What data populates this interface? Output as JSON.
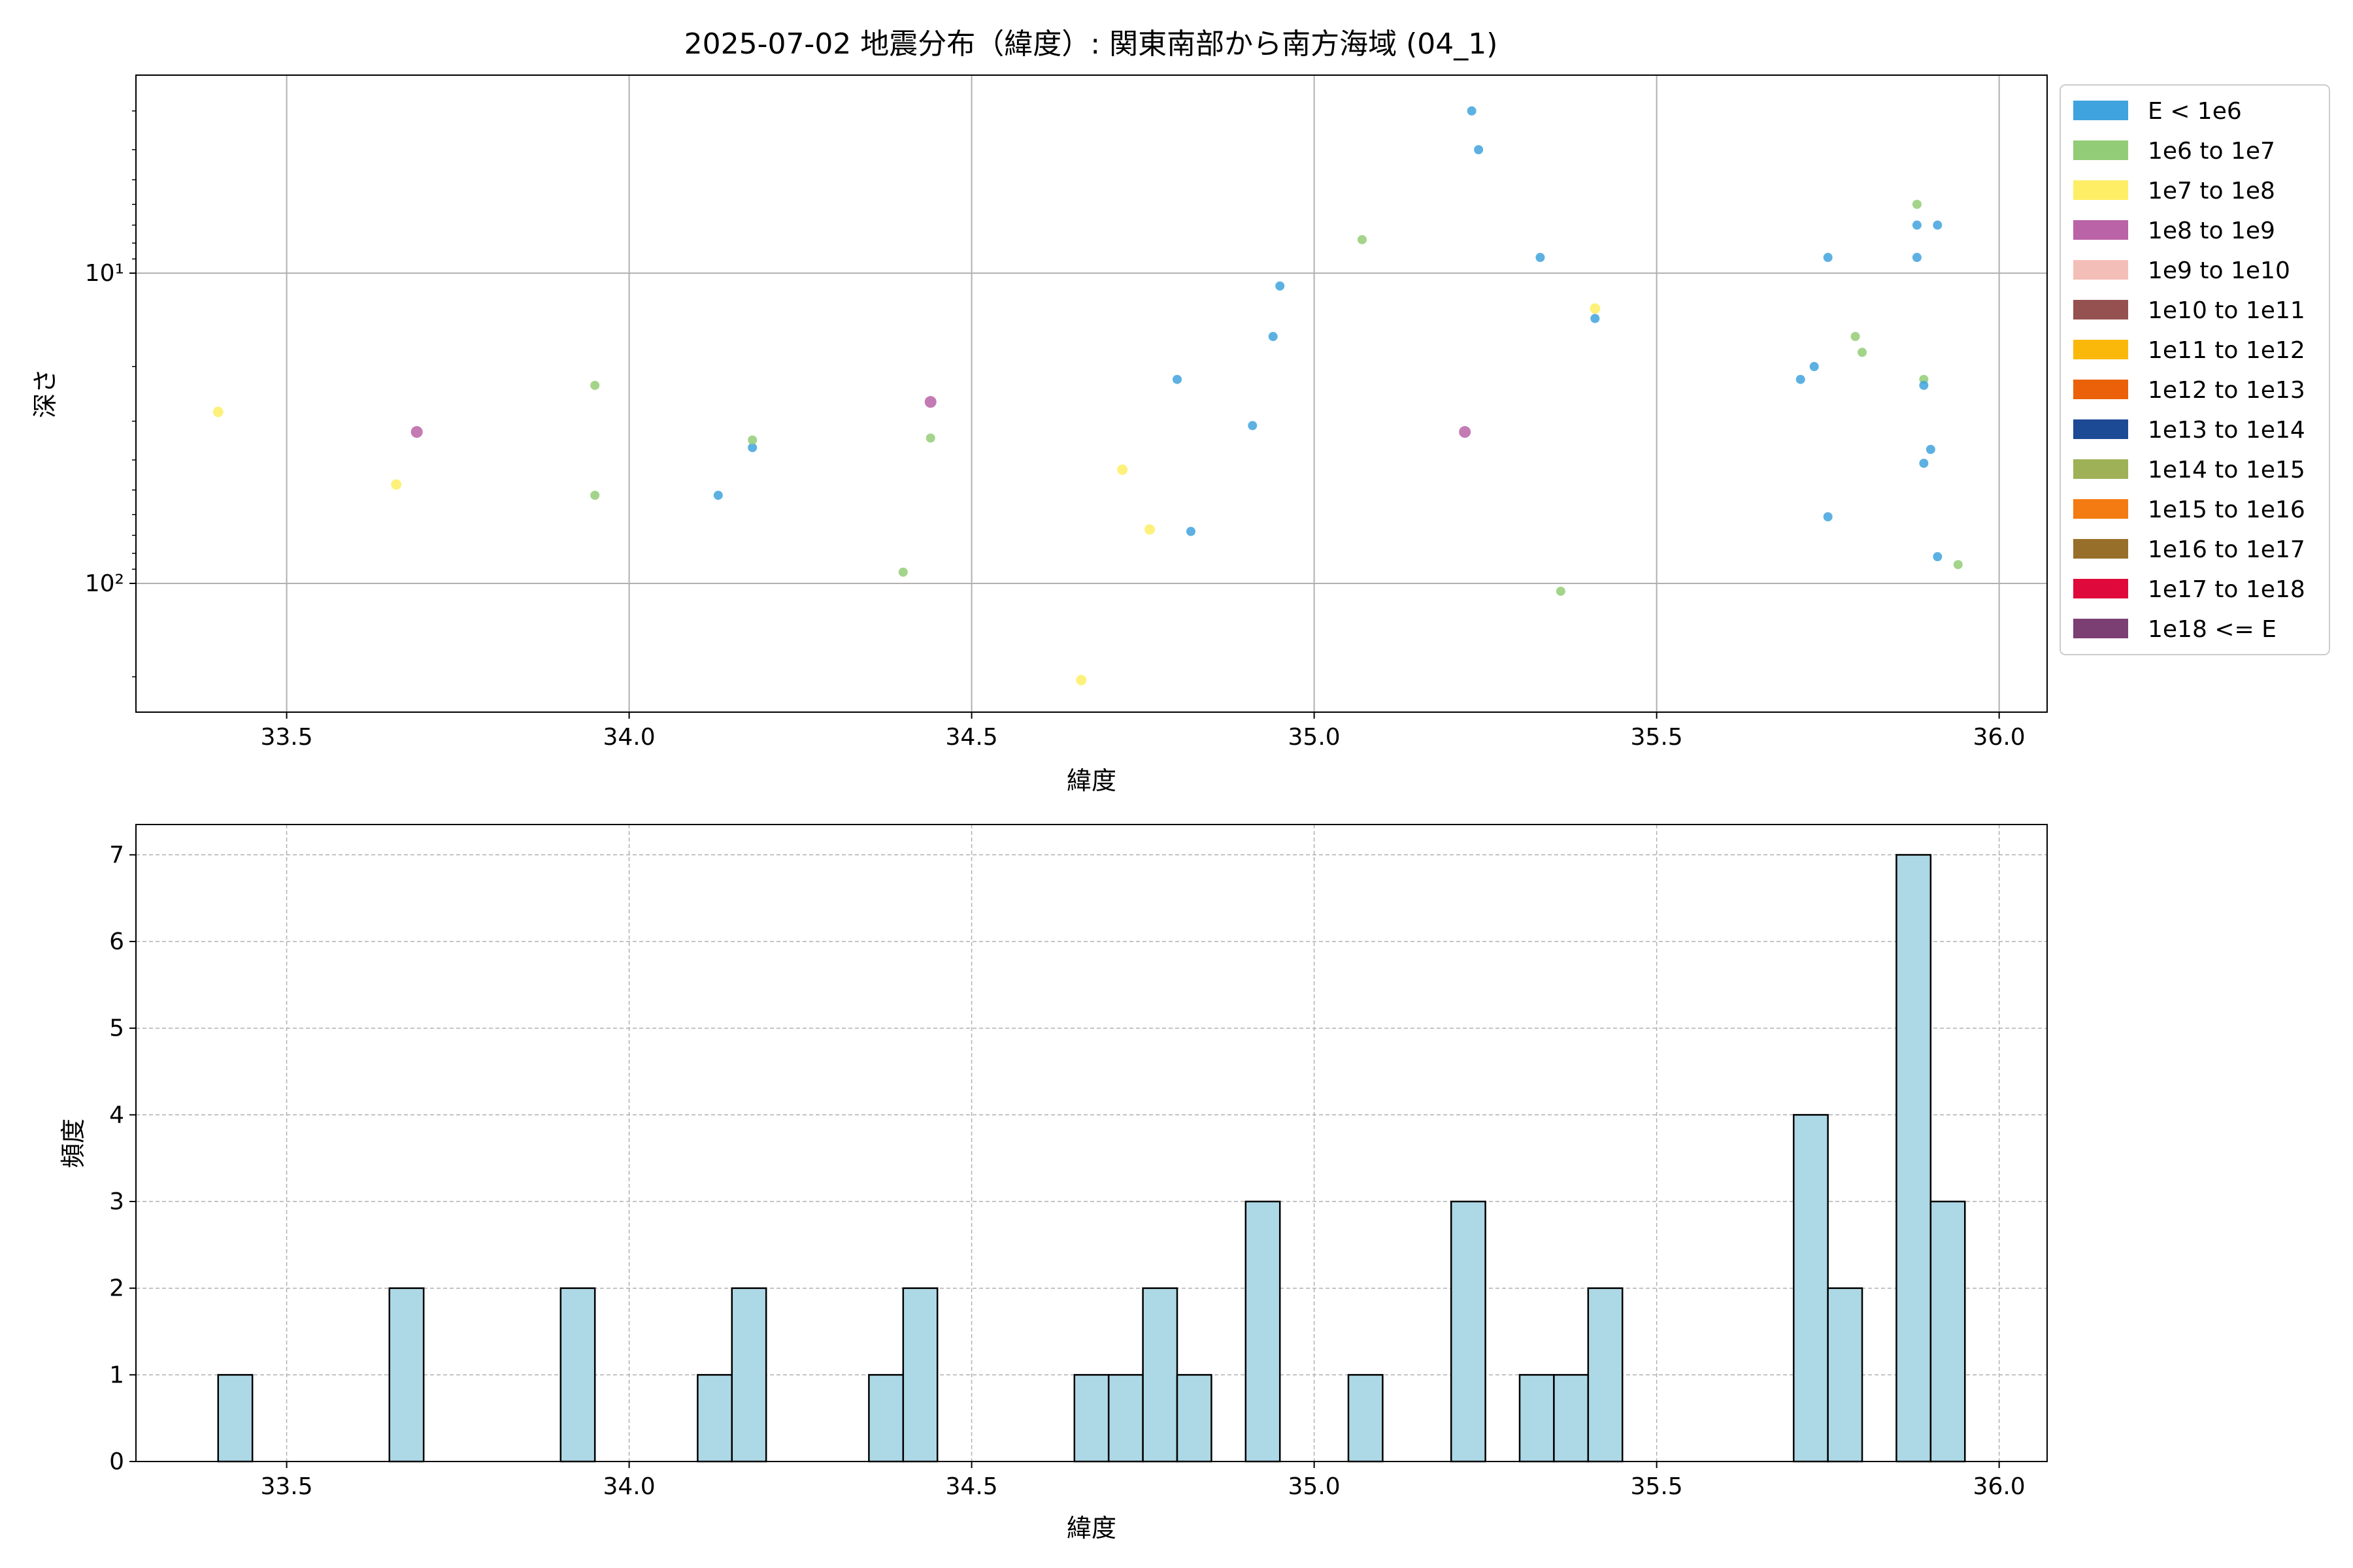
{
  "chart_data": [
    {
      "type": "scatter",
      "title": "2025-07-02 地震分布（緯度）: 関東南部から南方海域 (04_1)",
      "xlabel": "緯度",
      "ylabel": "深さ",
      "xlim": [
        33.28,
        36.07
      ],
      "ylim": [
        260,
        2.3
      ],
      "y_scale": "log",
      "y_inverted": true,
      "x_ticks": [
        "33.5",
        "34.0",
        "34.5",
        "35.0",
        "35.5",
        "36.0"
      ],
      "y_ticks": [
        {
          "value": 10,
          "label": "10¹"
        },
        {
          "value": 100,
          "label": "10²"
        }
      ],
      "grid": true,
      "legend_position": "outside-right",
      "legend": [
        {
          "name": "E < 1e6",
          "color": "#3fa3dd"
        },
        {
          "name": "1e6 to 1e7",
          "color": "#93cc76"
        },
        {
          "name": "1e7 to 1e8",
          "color": "#fdee65"
        },
        {
          "name": "1e8 to 1e9",
          "color": "#ba63a6"
        },
        {
          "name": "1e9 to 1e10",
          "color": "#f4beb8"
        },
        {
          "name": "1e10 to 1e11",
          "color": "#955050"
        },
        {
          "name": "1e11 to 1e12",
          "color": "#fab90a"
        },
        {
          "name": "1e12 to 1e13",
          "color": "#ea6109"
        },
        {
          "name": "1e13 to 1e14",
          "color": "#1c4a94"
        },
        {
          "name": "1e14 to 1e15",
          "color": "#9fb157"
        },
        {
          "name": "1e15 to 1e16",
          "color": "#f47b11"
        },
        {
          "name": "1e16 to 1e17",
          "color": "#986f2a"
        },
        {
          "name": "1e17 to 1e18",
          "color": "#df0a3b"
        },
        {
          "name": "1e18 <= E",
          "color": "#7b3f73"
        }
      ],
      "points": [
        {
          "x": 33.4,
          "y": 28.0,
          "cls": 2
        },
        {
          "x": 33.66,
          "y": 48.0,
          "cls": 2
        },
        {
          "x": 33.69,
          "y": 32.5,
          "cls": 3
        },
        {
          "x": 33.95,
          "y": 23.0,
          "cls": 1
        },
        {
          "x": 33.95,
          "y": 52.0,
          "cls": 1
        },
        {
          "x": 34.13,
          "y": 52.0,
          "cls": 0
        },
        {
          "x": 34.18,
          "y": 36.5,
          "cls": 0
        },
        {
          "x": 34.18,
          "y": 34.5,
          "cls": 1
        },
        {
          "x": 34.4,
          "y": 92.0,
          "cls": 1
        },
        {
          "x": 34.44,
          "y": 26.0,
          "cls": 3
        },
        {
          "x": 34.44,
          "y": 34.0,
          "cls": 1
        },
        {
          "x": 34.66,
          "y": 205.0,
          "cls": 2
        },
        {
          "x": 34.72,
          "y": 43.0,
          "cls": 2
        },
        {
          "x": 34.76,
          "y": 67.0,
          "cls": 2
        },
        {
          "x": 34.8,
          "y": 22.0,
          "cls": 0
        },
        {
          "x": 34.82,
          "y": 68.0,
          "cls": 0
        },
        {
          "x": 34.91,
          "y": 31.0,
          "cls": 0
        },
        {
          "x": 34.94,
          "y": 16.0,
          "cls": 0
        },
        {
          "x": 34.95,
          "y": 11.0,
          "cls": 0
        },
        {
          "x": 35.07,
          "y": 7.8,
          "cls": 1
        },
        {
          "x": 35.22,
          "y": 32.5,
          "cls": 3
        },
        {
          "x": 35.23,
          "y": 3.0,
          "cls": 0
        },
        {
          "x": 35.24,
          "y": 4.0,
          "cls": 0
        },
        {
          "x": 35.33,
          "y": 8.9,
          "cls": 0
        },
        {
          "x": 35.36,
          "y": 106.0,
          "cls": 1
        },
        {
          "x": 35.41,
          "y": 13.0,
          "cls": 2
        },
        {
          "x": 35.41,
          "y": 14.0,
          "cls": 0
        },
        {
          "x": 35.71,
          "y": 22.0,
          "cls": 0
        },
        {
          "x": 35.73,
          "y": 20.0,
          "cls": 0
        },
        {
          "x": 35.75,
          "y": 8.9,
          "cls": 0
        },
        {
          "x": 35.75,
          "y": 61.0,
          "cls": 0
        },
        {
          "x": 35.79,
          "y": 16.0,
          "cls": 1
        },
        {
          "x": 35.8,
          "y": 18.0,
          "cls": 1
        },
        {
          "x": 35.88,
          "y": 6.0,
          "cls": 1
        },
        {
          "x": 35.88,
          "y": 7.0,
          "cls": 0
        },
        {
          "x": 35.88,
          "y": 8.9,
          "cls": 0
        },
        {
          "x": 35.89,
          "y": 22.0,
          "cls": 1
        },
        {
          "x": 35.89,
          "y": 23.0,
          "cls": 0
        },
        {
          "x": 35.89,
          "y": 41.0,
          "cls": 0
        },
        {
          "x": 35.9,
          "y": 37.0,
          "cls": 0
        },
        {
          "x": 35.91,
          "y": 82.0,
          "cls": 0
        },
        {
          "x": 35.91,
          "y": 7.0,
          "cls": 0
        },
        {
          "x": 35.94,
          "y": 87.0,
          "cls": 1
        }
      ]
    },
    {
      "type": "bar",
      "title": "",
      "xlabel": "緯度",
      "ylabel": "頻度",
      "xlim": [
        33.28,
        36.07
      ],
      "ylim": [
        0,
        7.35
      ],
      "x_ticks": [
        "33.5",
        "34.0",
        "34.5",
        "35.0",
        "35.5",
        "36.0"
      ],
      "y_ticks": [
        "0",
        "1",
        "2",
        "3",
        "4",
        "5",
        "6",
        "7"
      ],
      "grid": true,
      "bar_color": "#add8e6",
      "bin_edges": [
        33.4,
        33.45,
        33.65,
        33.7,
        33.9,
        33.95,
        34.1,
        34.15,
        34.2,
        34.35,
        34.4,
        34.45,
        34.65,
        34.7,
        34.75,
        34.8,
        34.85,
        34.9,
        34.95,
        35.05,
        35.1,
        35.2,
        35.25,
        35.3,
        35.35,
        35.4,
        35.45,
        35.7,
        35.75,
        35.8,
        35.85,
        35.9,
        35.95
      ],
      "bins": [
        {
          "x0": 33.4,
          "x1": 33.45,
          "value": 1
        },
        {
          "x0": 33.65,
          "x1": 33.7,
          "value": 2
        },
        {
          "x0": 33.9,
          "x1": 33.95,
          "value": 2
        },
        {
          "x0": 34.1,
          "x1": 34.15,
          "value": 1
        },
        {
          "x0": 34.15,
          "x1": 34.2,
          "value": 2
        },
        {
          "x0": 34.35,
          "x1": 34.4,
          "value": 1
        },
        {
          "x0": 34.4,
          "x1": 34.45,
          "value": 2
        },
        {
          "x0": 34.65,
          "x1": 34.7,
          "value": 1
        },
        {
          "x0": 34.7,
          "x1": 34.75,
          "value": 1
        },
        {
          "x0": 34.75,
          "x1": 34.8,
          "value": 2
        },
        {
          "x0": 34.8,
          "x1": 34.85,
          "value": 1
        },
        {
          "x0": 34.9,
          "x1": 34.95,
          "value": 3
        },
        {
          "x0": 35.05,
          "x1": 35.1,
          "value": 1
        },
        {
          "x0": 35.2,
          "x1": 35.25,
          "value": 3
        },
        {
          "x0": 35.3,
          "x1": 35.35,
          "value": 1
        },
        {
          "x0": 35.35,
          "x1": 35.4,
          "value": 1
        },
        {
          "x0": 35.4,
          "x1": 35.45,
          "value": 2
        },
        {
          "x0": 35.7,
          "x1": 35.75,
          "value": 4
        },
        {
          "x0": 35.75,
          "x1": 35.8,
          "value": 2
        },
        {
          "x0": 35.85,
          "x1": 35.9,
          "value": 7
        },
        {
          "x0": 35.9,
          "x1": 35.95,
          "value": 3
        }
      ]
    }
  ]
}
